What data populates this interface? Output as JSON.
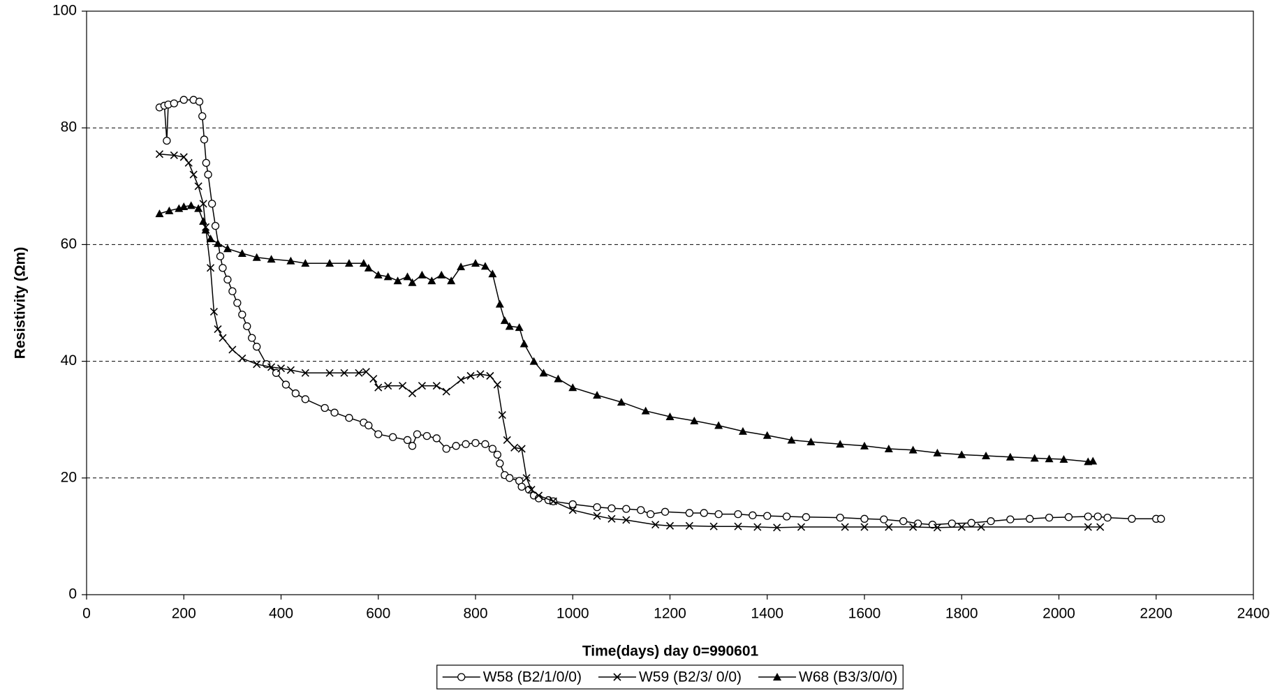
{
  "chart_data": {
    "type": "line",
    "xlabel": "Time(days)  day 0=990601",
    "ylabel": "Resistivity (Ωm)",
    "xlim": [
      0,
      2400
    ],
    "xticks": [
      0,
      200,
      400,
      600,
      800,
      1000,
      1200,
      1400,
      1600,
      1800,
      2000,
      2200,
      2400
    ],
    "ylim": [
      0,
      100
    ],
    "yticks": [
      0,
      20,
      40,
      60,
      80,
      100
    ],
    "grid": true,
    "legend": "bottom",
    "series": [
      {
        "name": "W58 (B2/1/0/0)",
        "color": "#000000",
        "marker": "circle",
        "x": [
          150,
          160,
          165,
          168,
          180,
          200,
          220,
          232,
          238,
          242,
          246,
          250,
          258,
          265,
          275,
          280,
          290,
          300,
          310,
          320,
          330,
          340,
          350,
          370,
          390,
          410,
          430,
          450,
          490,
          510,
          540,
          570,
          580,
          600,
          630,
          660,
          670,
          680,
          700,
          720,
          740,
          760,
          780,
          800,
          820,
          835,
          845,
          850,
          860,
          870,
          890,
          895,
          910,
          920,
          930,
          950,
          960,
          1000,
          1050,
          1080,
          1110,
          1140,
          1160,
          1190,
          1240,
          1270,
          1300,
          1340,
          1370,
          1400,
          1440,
          1480,
          1550,
          1600,
          1640,
          1680,
          1710,
          1740,
          1780,
          1820,
          1860,
          1900,
          1940,
          1980,
          2020,
          2060,
          2080,
          2100,
          2150,
          2200,
          2210
        ],
        "values": [
          83.5,
          83.8,
          77.8,
          84,
          84.2,
          84.8,
          84.8,
          84.5,
          82,
          78,
          74,
          72,
          67,
          63.2,
          58,
          56,
          54,
          52,
          50,
          48,
          46,
          44,
          42.5,
          39.5,
          38,
          36,
          34.5,
          33.5,
          32,
          31.2,
          30.3,
          29.5,
          29,
          27.5,
          27,
          26.5,
          25.5,
          27.5,
          27.2,
          26.8,
          25,
          25.5,
          25.8,
          26,
          25.8,
          25,
          24,
          22.5,
          20.5,
          20,
          19.5,
          18.5,
          18,
          17,
          16.5,
          16.2,
          16,
          15.5,
          15,
          14.8,
          14.7,
          14.5,
          13.8,
          14.2,
          14,
          14,
          13.8,
          13.8,
          13.6,
          13.5,
          13.4,
          13.3,
          13.2,
          13,
          12.9,
          12.6,
          12.2,
          12,
          12.2,
          12.3,
          12.6,
          12.9,
          13,
          13.2,
          13.3,
          13.4,
          13.4,
          13.2,
          13,
          13,
          13
        ]
      },
      {
        "name": "W59 (B2/3/ 0/0)",
        "color": "#000000",
        "marker": "cross",
        "x": [
          150,
          180,
          200,
          210,
          220,
          230,
          240,
          245,
          255,
          262,
          270,
          280,
          300,
          320,
          350,
          380,
          400,
          420,
          450,
          500,
          530,
          560,
          575,
          590,
          600,
          620,
          650,
          670,
          690,
          720,
          740,
          770,
          790,
          810,
          830,
          845,
          855,
          865,
          880,
          895,
          905,
          915,
          930,
          960,
          1000,
          1050,
          1080,
          1110,
          1170,
          1200,
          1240,
          1290,
          1340,
          1380,
          1420,
          1470,
          1560,
          1600,
          1650,
          1700,
          1750,
          1800,
          1840,
          2060,
          2085
        ],
        "values": [
          75.5,
          75.3,
          75,
          74,
          72,
          70,
          67,
          63,
          56,
          48.5,
          45.5,
          44,
          42,
          40.5,
          39.5,
          39,
          38.8,
          38.5,
          38,
          38,
          38,
          38,
          38.2,
          37,
          35.5,
          35.8,
          35.8,
          34.5,
          35.8,
          35.8,
          34.8,
          36.8,
          37.5,
          37.8,
          37.5,
          36,
          30.8,
          26.5,
          25.2,
          25,
          20,
          18,
          17,
          16,
          14.5,
          13.5,
          13,
          12.8,
          12,
          11.8,
          11.8,
          11.7,
          11.7,
          11.6,
          11.5,
          11.6,
          11.6,
          11.6,
          11.6,
          11.6,
          11.5,
          11.6,
          11.6,
          11.6,
          11.6
        ]
      },
      {
        "name": "W68 (B3/3/0/0)",
        "color": "#000000",
        "marker": "triangle",
        "x": [
          150,
          170,
          190,
          200,
          215,
          230,
          240,
          245,
          255,
          270,
          290,
          320,
          350,
          380,
          420,
          450,
          500,
          540,
          570,
          580,
          600,
          620,
          640,
          660,
          670,
          690,
          710,
          730,
          750,
          770,
          800,
          820,
          835,
          850,
          860,
          870,
          890,
          900,
          920,
          940,
          970,
          1000,
          1050,
          1100,
          1150,
          1200,
          1250,
          1300,
          1350,
          1400,
          1450,
          1490,
          1550,
          1600,
          1650,
          1700,
          1750,
          1800,
          1850,
          1900,
          1950,
          1980,
          2010,
          2060,
          2070
        ],
        "values": [
          65.3,
          65.8,
          66.2,
          66.5,
          66.7,
          66.2,
          64,
          62.5,
          61,
          60.2,
          59.3,
          58.5,
          57.8,
          57.5,
          57.2,
          56.8,
          56.8,
          56.8,
          56.8,
          56,
          54.8,
          54.5,
          53.8,
          54.5,
          53.5,
          54.8,
          53.8,
          54.8,
          53.8,
          56.2,
          56.8,
          56.3,
          55,
          49.8,
          47,
          46,
          45.8,
          43,
          40,
          38,
          37,
          35.5,
          34.2,
          33,
          31.5,
          30.5,
          29.8,
          29,
          28,
          27.3,
          26.5,
          26.2,
          25.8,
          25.5,
          25,
          24.8,
          24.3,
          24,
          23.8,
          23.6,
          23.4,
          23.3,
          23.2,
          22.8,
          22.9
        ]
      }
    ]
  }
}
